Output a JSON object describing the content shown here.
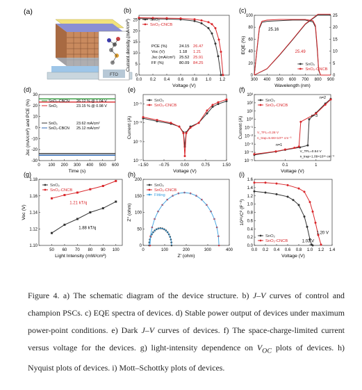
{
  "caption": {
    "prefix": "Figure 4. a) The schematic diagram of the device structure. b) ",
    "jv": "J–V",
    "mid1": " curves of control and champion PSCs. c) EQE spectra of devices. d) Stable power output of devices under maximum power-point conditions. e) Dark ",
    "mid2": " curves of devices. f) The space-charge-limited current versus voltage for the devices. g) light-intensity dependence on ",
    "voc": "V",
    "voc_sub": "OC",
    "suffix": " plots of devices. h) Nyquist plots of devices. i) Mott–Schottky plots of devices."
  },
  "colors": {
    "sno2": "#333333",
    "cncb": "#d9262a",
    "green": "#2e9a3a",
    "blue": "#2c67b5",
    "fit": "#3aa0e0"
  },
  "panel_a": {
    "label": "(a)",
    "layers": [
      {
        "name": "top electrode",
        "color": "#f2e27a"
      },
      {
        "name": "hole transport layer",
        "color": "#8a8fd4"
      },
      {
        "name": "perovskite",
        "color": "#c98a5e"
      },
      {
        "name": "electron transport layer",
        "color": "#9ec6e8"
      },
      {
        "name": "glass",
        "color": "#c9d6de"
      }
    ],
    "substrate_label": "FTO"
  },
  "chart_data": [
    {
      "id": "b",
      "type": "line",
      "label": "(b)",
      "xlabel": "Voltage (V)",
      "ylabel": "Current density (mA/cm²)",
      "xlim": [
        0,
        1.3
      ],
      "ylim": [
        0,
        27
      ],
      "xticks": [
        0.0,
        0.2,
        0.4,
        0.6,
        0.8,
        1.0,
        1.2
      ],
      "yticks": [
        0,
        5,
        10,
        15,
        20,
        25
      ],
      "legend": [
        "SnO₂",
        "SnO₂-CNCB"
      ],
      "legend_position": "top-left",
      "table": {
        "rows": [
          {
            "name": "PCE (%)",
            "sno2": "24.15",
            "cncb": "26.47"
          },
          {
            "name": "Voc (V)",
            "sno2": "1.18",
            "cncb": "1.21"
          },
          {
            "name": "Jsc (mA/cm²)",
            "sno2": "25.52",
            "cncb": "25.91"
          },
          {
            "name": "FF (%)",
            "sno2": "80.09",
            "cncb": "84.25"
          }
        ]
      },
      "series": [
        {
          "name": "SnO₂",
          "x": [
            0,
            0.2,
            0.4,
            0.6,
            0.8,
            0.9,
            1.0,
            1.05,
            1.1,
            1.14,
            1.18
          ],
          "y": [
            25.5,
            25.4,
            25.3,
            25.1,
            24.4,
            23.4,
            21.2,
            18.8,
            14.2,
            8.5,
            0
          ]
        },
        {
          "name": "SnO₂-CNCB",
          "x": [
            0,
            0.2,
            0.4,
            0.6,
            0.8,
            0.9,
            1.0,
            1.05,
            1.1,
            1.15,
            1.18,
            1.21
          ],
          "y": [
            25.9,
            25.8,
            25.7,
            25.6,
            25.2,
            24.7,
            23.9,
            23.0,
            21.2,
            16.0,
            10.5,
            0
          ]
        }
      ]
    },
    {
      "id": "c",
      "type": "line",
      "label": "(c)",
      "xlabel": "Wavelength (nm)",
      "ylabel": "EQE (%)",
      "y2label": "Integrated Jsc (mA/cm²)",
      "xlim": [
        300,
        900
      ],
      "ylim": [
        0,
        100
      ],
      "y2lim": [
        0,
        25
      ],
      "xticks": [
        300,
        400,
        500,
        600,
        700,
        800,
        900
      ],
      "yticks": [
        0,
        20,
        40,
        60,
        80,
        100
      ],
      "y2ticks": [
        0,
        5,
        10,
        15,
        20,
        25
      ],
      "legend": [
        "SnO₂",
        "SnO₂-CNCB"
      ],
      "legend_position": "bottom-right",
      "annotations": [
        "25.16",
        "25.49"
      ],
      "series": [
        {
          "name": "SnO₂ EQE",
          "x": [
            300,
            320,
            340,
            360,
            400,
            500,
            600,
            700,
            760,
            780,
            795,
            805,
            820,
            900
          ],
          "y": [
            0,
            40,
            78,
            88,
            90,
            91,
            92,
            92,
            89,
            80,
            40,
            8,
            0,
            0
          ]
        },
        {
          "name": "SnO₂-CNCB EQE",
          "x": [
            300,
            320,
            340,
            360,
            400,
            500,
            600,
            700,
            760,
            780,
            795,
            805,
            820,
            900
          ],
          "y": [
            0,
            42,
            80,
            90,
            92,
            93,
            93,
            93,
            91,
            83,
            45,
            10,
            0,
            0
          ]
        },
        {
          "name": "SnO₂ integrated",
          "x": [
            300,
            400,
            500,
            600,
            700,
            800,
            900
          ],
          "y": [
            0,
            2.6,
            8.4,
            14.7,
            21.2,
            25.16,
            25.16
          ]
        },
        {
          "name": "SnO₂-CNCB integrated",
          "x": [
            300,
            400,
            500,
            600,
            700,
            800,
            900
          ],
          "y": [
            0,
            2.7,
            8.6,
            14.9,
            21.4,
            25.49,
            25.49
          ]
        }
      ]
    },
    {
      "id": "d",
      "type": "line",
      "label": "(d)",
      "xlabel": "Time (s)",
      "ylabel": "Jsc (mA/cm²) and PCE (%)",
      "xlim": [
        0,
        600
      ],
      "ylim": [
        -30,
        30
      ],
      "xticks": [
        0,
        100,
        200,
        300,
        400,
        500,
        600
      ],
      "yticks": [
        -30,
        -20,
        -10,
        0,
        10,
        20,
        30
      ],
      "legend": [
        {
          "name": "SnO₂-CBCN",
          "value": "26.12 % @ 1.04 V"
        },
        {
          "name": "SnO₂",
          "value": "23.15 % @ 0.98 V"
        },
        {
          "name": "SnO₂",
          "value": "23.62 mA/cm²"
        },
        {
          "name": "SnO₂-CBCN",
          "value": "25.12 mA/cm²"
        }
      ],
      "series": [
        {
          "name": "SnO₂-CBCN PCE",
          "y": 26.12
        },
        {
          "name": "SnO₂ PCE",
          "y": 23.15
        },
        {
          "name": "SnO₂ Jsc",
          "y": -23.62
        },
        {
          "name": "SnO₂-CBCN Jsc",
          "y": -25.12
        }
      ]
    },
    {
      "id": "e",
      "type": "line",
      "label": "(e)",
      "xlabel": "Voltage (V)",
      "ylabel": "Current (A)",
      "yscale": "log",
      "xlim": [
        -1.5,
        1.5
      ],
      "ylim": [
        1e-07,
        1
      ],
      "xticks": [
        -1.5,
        -0.75,
        0.0,
        0.75,
        1.5
      ],
      "xticklabels": [
        "−1.50",
        "−0.75",
        "0.00",
        "0.75",
        "1.50"
      ],
      "yticklabels": [
        "10⁻⁷",
        "10⁻⁵",
        "10⁻³",
        "10⁻¹"
      ],
      "ytickvalues": [
        1e-07,
        1e-05,
        0.001,
        0.1
      ],
      "legend": [
        "SnO₂",
        "SnO₂-CNCB"
      ],
      "legend_position": "top-left",
      "series": [
        {
          "name": "SnO₂",
          "x": [
            -1.5,
            -1.0,
            -0.5,
            -0.2,
            -0.05,
            0.0,
            0.05,
            0.2,
            0.5,
            0.8,
            1.0,
            1.2,
            1.5
          ],
          "y": [
            0.003,
            0.0015,
            0.0008,
            0.0004,
            0.0001,
            3e-06,
            0.0001,
            0.0004,
            0.001,
            0.01,
            0.05,
            0.1,
            0.2
          ]
        },
        {
          "name": "SnO₂-CNCB",
          "x": [
            -1.5,
            -1.0,
            -0.5,
            -0.2,
            -0.05,
            0.0,
            0.05,
            0.2,
            0.5,
            0.8,
            1.0,
            1.2,
            1.5
          ],
          "y": [
            0.004,
            0.002,
            0.001,
            0.0004,
            8e-05,
            3e-07,
            8e-05,
            0.0003,
            0.001,
            0.02,
            0.08,
            0.15,
            0.3
          ]
        }
      ]
    },
    {
      "id": "f",
      "type": "line",
      "label": "(f)",
      "xlabel": "Voltage (V)",
      "ylabel": "Current (A)",
      "xscale": "log",
      "yscale": "log",
      "xlim": [
        0.01,
        3
      ],
      "ylim": [
        1e-05,
        1000.0
      ],
      "xticklabels": [
        "0.1",
        "1"
      ],
      "xtickvalues": [
        0.1,
        1
      ],
      "yticklabels": [
        "10⁻⁵",
        "10⁻⁴",
        "10⁻³",
        "10⁻²",
        "10⁻¹",
        "10⁰",
        "10¹",
        "10²",
        "10³"
      ],
      "ytickvalues": [
        1e-05,
        0.0001,
        0.001,
        0.01,
        0.1,
        1,
        10,
        100,
        1000
      ],
      "legend": [
        "SnO₂",
        "SnO₂-CNCB"
      ],
      "legend_position": "top-left",
      "annotations": [
        "n=2",
        "n=3",
        "n=1",
        "V_TFL=0.28 V",
        "n_trap=5.66×10¹⁵ cm⁻³",
        "V_TFL=0.54 V",
        "n_trap=1.09×10¹⁶ cm⁻³"
      ],
      "series": [
        {
          "name": "SnO₂",
          "x": [
            0.01,
            0.05,
            0.1,
            0.3,
            0.54,
            0.6,
            1,
            2,
            3
          ],
          "y": [
            5e-05,
            0.00012,
            0.0002,
            0.0004,
            0.0007,
            1,
            6,
            80,
            300
          ]
        },
        {
          "name": "SnO₂-CNCB",
          "x": [
            0.01,
            0.05,
            0.1,
            0.2,
            0.28,
            0.32,
            1,
            2,
            3
          ],
          "y": [
            6e-05,
            0.00013,
            0.00022,
            0.00035,
            0.0005,
            0.5,
            5,
            60,
            250
          ]
        }
      ]
    },
    {
      "id": "g",
      "type": "scatter",
      "label": "(g)",
      "xlabel": "Light Intensity (mW/cm²)",
      "ylabel": "Voc (V)",
      "xlim": [
        40,
        105
      ],
      "ylim": [
        1.1,
        1.18
      ],
      "xticks": [
        50,
        60,
        70,
        80,
        90,
        100
      ],
      "yticks": [
        1.1,
        1.12,
        1.14,
        1.16,
        1.18
      ],
      "legend": [
        "SnO₂",
        "SnO₂-CNCB"
      ],
      "legend_position": "top-left",
      "annotations": [
        "1.21 kT/q",
        "1.88 kT/q"
      ],
      "series": [
        {
          "name": "SnO₂-CNCB",
          "x": [
            50,
            60,
            70,
            80,
            90,
            100
          ],
          "y": [
            1.157,
            1.161,
            1.164,
            1.168,
            1.172,
            1.178
          ]
        },
        {
          "name": "SnO₂",
          "x": [
            50,
            60,
            70,
            80,
            90,
            100
          ],
          "y": [
            1.115,
            1.125,
            1.132,
            1.14,
            1.145,
            1.153
          ]
        }
      ]
    },
    {
      "id": "h",
      "type": "scatter",
      "label": "(h)",
      "xlabel": "Z' (ohm)",
      "ylabel": "Z'' (ohm)",
      "xlim": [
        0,
        400
      ],
      "ylim": [
        0,
        200
      ],
      "xticks": [
        0,
        100,
        200,
        300,
        400
      ],
      "yticks": [
        0,
        50,
        100,
        150,
        200
      ],
      "legend": [
        "SnO₂",
        "SnO₂-CNCB",
        "Fitting"
      ],
      "legend_position": "top-left",
      "series": [
        {
          "name": "SnO₂",
          "center": 80,
          "radius": 52
        },
        {
          "name": "SnO₂-CNCB",
          "center": 192,
          "radius": 160
        }
      ]
    },
    {
      "id": "i",
      "type": "line",
      "label": "(i)",
      "xlabel": "Voltage (V)",
      "ylabel": "10¹⁶/C² (F⁻²)",
      "xlim": [
        0,
        1.4
      ],
      "ylim": [
        0,
        1.6
      ],
      "xticks": [
        0.0,
        0.2,
        0.4,
        0.6,
        0.8,
        1.0,
        1.2,
        1.4
      ],
      "yticks": [
        0.0,
        0.2,
        0.4,
        0.6,
        0.8,
        1.0,
        1.2,
        1.4,
        1.6
      ],
      "legend": [
        "SnO₂",
        "SnO₂-CNCB"
      ],
      "legend_position": "bottom-left",
      "annotations": [
        "1.03 V",
        "1.20 V"
      ],
      "series": [
        {
          "name": "SnO₂",
          "x": [
            0,
            0.2,
            0.4,
            0.6,
            0.7,
            0.8,
            0.9,
            0.95,
            1.0,
            1.03,
            1.05
          ],
          "y": [
            1.31,
            1.28,
            1.24,
            1.18,
            1.1,
            0.98,
            0.7,
            0.45,
            0.15,
            0.02,
            0
          ]
        },
        {
          "name": "SnO₂-CNCB",
          "x": [
            0,
            0.2,
            0.4,
            0.6,
            0.8,
            0.9,
            1.0,
            1.05,
            1.1,
            1.15,
            1.2
          ],
          "y": [
            1.52,
            1.52,
            1.5,
            1.46,
            1.38,
            1.3,
            1.05,
            0.82,
            0.55,
            0.25,
            0.02
          ]
        }
      ]
    }
  ]
}
